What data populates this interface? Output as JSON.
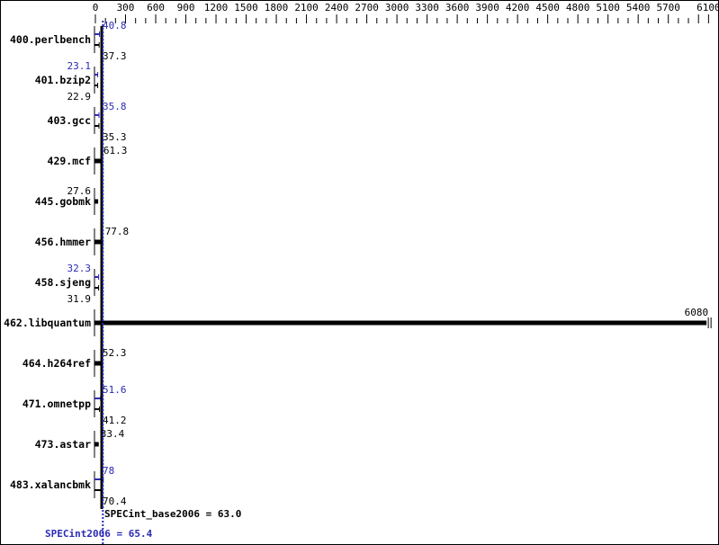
{
  "chart_data": {
    "type": "bar",
    "orientation": "horizontal",
    "xlim": [
      0,
      6100
    ],
    "x_ticks": [
      0,
      300,
      600,
      900,
      1200,
      1500,
      1800,
      2100,
      2400,
      2700,
      3000,
      3300,
      3600,
      3900,
      4200,
      4500,
      4800,
      5100,
      5400,
      5700,
      6100
    ],
    "x_minor_tick_step": 100,
    "axis_position": "top",
    "grid": false,
    "categories": [
      "400.perlbench",
      "401.bzip2",
      "403.gcc",
      "429.mcf",
      "445.gobmk",
      "456.hmmer",
      "458.sjeng",
      "462.libquantum",
      "464.h264ref",
      "471.omnetpp",
      "473.astar",
      "483.xalancbmk"
    ],
    "series": [
      {
        "name": "SPECint_base2006",
        "color": "#000000",
        "values": [
          37.3,
          22.9,
          35.3,
          61.3,
          27.6,
          77.8,
          31.9,
          6080,
          52.3,
          41.2,
          33.4,
          70.4
        ]
      },
      {
        "name": "SPECint2006",
        "color": "#2b2bb3",
        "values": [
          40.8,
          23.1,
          35.8,
          null,
          null,
          null,
          32.3,
          null,
          null,
          51.6,
          null,
          78.0
        ]
      }
    ],
    "summary": {
      "base_label": "SPECint_base2006 = 63.0",
      "base_value": 63.0,
      "peak_label": "SPECint2006 = 65.4",
      "peak_value": 65.4
    }
  }
}
